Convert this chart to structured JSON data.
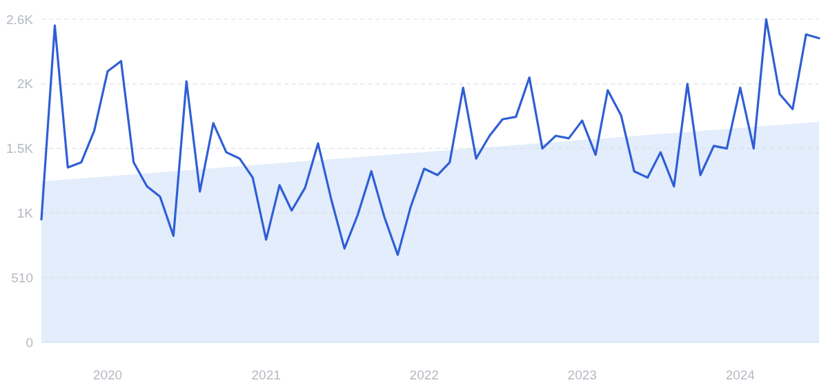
{
  "chart_data": {
    "type": "line",
    "xlim": [
      "2019-08",
      "2024-07"
    ],
    "xticks": [
      "2020",
      "2021",
      "2022",
      "2023",
      "2024"
    ],
    "ylim": [
      0,
      2550
    ],
    "yticks": [
      0,
      510,
      {
        "value": 1020,
        "label": "1K"
      },
      {
        "value": 1530,
        "label": "1.5K"
      },
      {
        "value": 2040,
        "label": "2K"
      },
      {
        "value": 2550,
        "label": "2.6K"
      }
    ],
    "grid": "y",
    "marker": "none",
    "line_style": "solid",
    "series": [
      {
        "type": "area",
        "color": "#dce9fa",
        "x": [
          "2019-08",
          "2024-07"
        ],
        "values": [
          1270,
          1740
        ]
      },
      {
        "color": "#2f5fd6",
        "x": [
          "2019-08",
          "2019-09",
          "2019-10",
          "2019-11",
          "2019-12",
          "2020-01",
          "2020-02",
          "2020-03",
          "2020-04",
          "2020-05",
          "2020-06",
          "2020-07",
          "2020-08",
          "2020-09",
          "2020-10",
          "2020-11",
          "2020-12",
          "2021-01",
          "2021-02",
          "2021-03",
          "2021-04",
          "2021-05",
          "2021-06",
          "2021-07",
          "2021-08",
          "2021-09",
          "2021-10",
          "2021-11",
          "2021-12",
          "2022-01",
          "2022-02",
          "2022-03",
          "2022-04",
          "2022-05",
          "2022-06",
          "2022-07",
          "2022-08",
          "2022-09",
          "2022-10",
          "2022-11",
          "2022-12",
          "2023-01",
          "2023-02",
          "2023-03",
          "2023-04",
          "2023-05",
          "2023-06",
          "2023-07",
          "2023-08",
          "2023-09",
          "2023-10",
          "2023-11",
          "2023-12",
          "2024-01",
          "2024-02",
          "2024-03",
          "2024-04",
          "2024-05",
          "2024-06",
          "2024-07"
        ],
        "values": [
          970,
          2500,
          1380,
          1420,
          1670,
          2140,
          2220,
          1420,
          1230,
          1150,
          840,
          2060,
          1190,
          1730,
          1500,
          1450,
          1300,
          810,
          1240,
          1040,
          1220,
          1570,
          1120,
          740,
          1010,
          1350,
          990,
          690,
          1070,
          1370,
          1320,
          1420,
          2010,
          1450,
          1630,
          1760,
          1780,
          2090,
          1530,
          1630,
          1610,
          1750,
          1480,
          1990,
          1790,
          1350,
          1300,
          1500,
          1230,
          2040,
          1320,
          1550,
          1530,
          2010,
          1530,
          2550,
          1960,
          1840,
          2430,
          2400
        ]
      }
    ]
  }
}
